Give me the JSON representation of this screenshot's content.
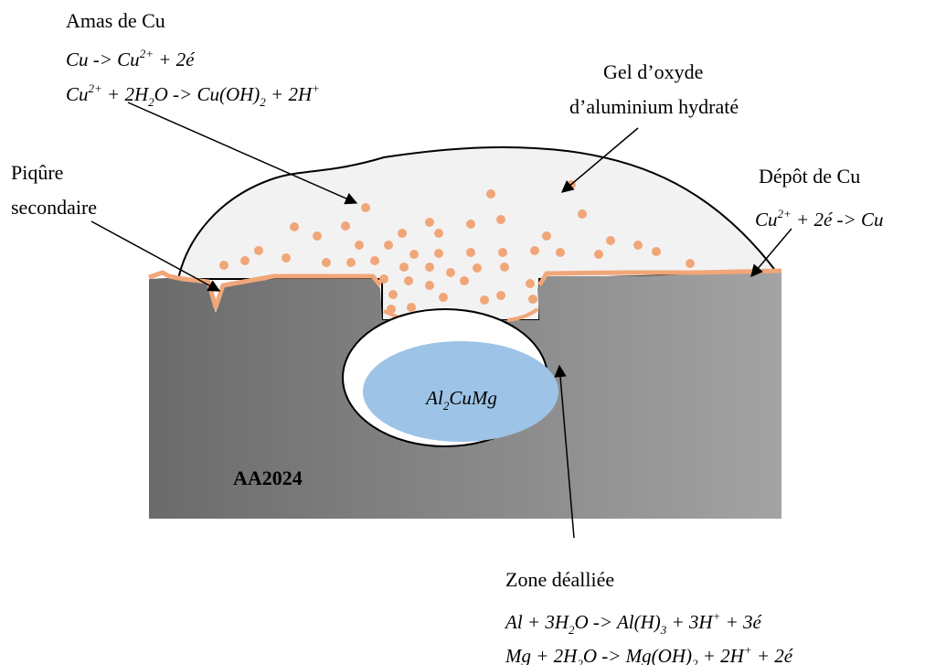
{
  "labels": {
    "amas": "Amas de Cu",
    "gel": [
      "Gel d’oxyde",
      "d’aluminium hydraté"
    ],
    "piqure": [
      "Piqûre",
      "secondaire"
    ],
    "depot": "Dépôt de Cu",
    "substrate": "AA2024",
    "zone": "Zone déalliée"
  },
  "equations": [
    {
      "parts": [
        {
          "text": "Cu -> Cu"
        },
        {
          "sup": "2+"
        },
        {
          "text": " + 2é"
        }
      ]
    },
    {
      "parts": [
        {
          "text": "Cu"
        },
        {
          "sup": "2+"
        },
        {
          "text": " + 2H"
        },
        {
          "sub": "2"
        },
        {
          "text": "O -> Cu(OH)"
        },
        {
          "sub": "2"
        },
        {
          "text": " + 2H"
        },
        {
          "sup": "+"
        }
      ]
    },
    {
      "parts": [
        {
          "text": "Cu"
        },
        {
          "sup": "2+"
        },
        {
          "text": " + 2é -> Cu"
        }
      ]
    },
    {
      "parts": [
        {
          "text": "Al"
        },
        {
          "sub": "2"
        },
        {
          "text": "CuMg"
        }
      ]
    },
    {
      "parts": [
        {
          "text": "Al + 3H"
        },
        {
          "sub": "2"
        },
        {
          "text": "O -> Al(H)"
        },
        {
          "sub": "3"
        },
        {
          "text": " + 3H"
        },
        {
          "sup": "+"
        },
        {
          "text": " + 3é"
        }
      ]
    },
    {
      "parts": [
        {
          "text": "Mg + 2H"
        },
        {
          "sub": "2"
        },
        {
          "text": "O -> Mg(OH)"
        },
        {
          "sub": "2"
        },
        {
          "text": " + 2H"
        },
        {
          "sup": "+"
        },
        {
          "text": " + 2é"
        }
      ]
    }
  ]
}
